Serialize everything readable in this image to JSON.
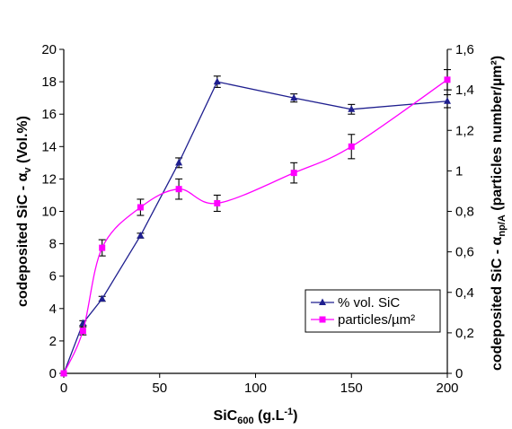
{
  "chart_data": {
    "type": "line",
    "title": "",
    "xlabel": {
      "base": "SiC",
      "sub": "600",
      "rest": " (g.L",
      "sup": "-1",
      "end": ")"
    },
    "ylabel_left": {
      "base": "codeposited SiC - α",
      "sub": "v",
      "rest": " (Vol.%)"
    },
    "ylabel_right": {
      "base": "codeposited SiC - α",
      "sub": "np/A",
      "rest": " (particles number/µm²)"
    },
    "xlim": [
      0,
      200
    ],
    "ylim_left": [
      0,
      20
    ],
    "ylim_right": [
      0,
      1.6
    ],
    "x_ticks": [
      "0",
      "50",
      "100",
      "150",
      "200"
    ],
    "y_left_ticks": [
      "0",
      "2",
      "4",
      "6",
      "8",
      "10",
      "12",
      "14",
      "16",
      "18",
      "20"
    ],
    "y_right_ticks": [
      "0",
      "0,2",
      "0,4",
      "0,6",
      "0,8",
      "1",
      "1,2",
      "1,4",
      "1,6"
    ],
    "grid": false,
    "legend_position": "bottom-right",
    "series": [
      {
        "name": "% vol. SiC",
        "axis": "left",
        "color": "#1f1f8f",
        "marker": "triangle",
        "smooth": false,
        "x": [
          0,
          10,
          20,
          40,
          60,
          80,
          120,
          150,
          200
        ],
        "y": [
          0,
          3.1,
          4.6,
          8.5,
          13.0,
          18.0,
          17.0,
          16.3,
          16.8
        ],
        "err": [
          0,
          0.15,
          0.15,
          0.15,
          0.3,
          0.35,
          0.25,
          0.3,
          0.4
        ]
      },
      {
        "name": "particles/µm²",
        "axis": "right",
        "color": "#ff00ff",
        "marker": "square",
        "smooth": true,
        "x": [
          0,
          10,
          20,
          40,
          60,
          80,
          120,
          150,
          200
        ],
        "y": [
          0,
          0.21,
          0.62,
          0.82,
          0.91,
          0.84,
          0.99,
          1.12,
          1.45
        ],
        "err": [
          0,
          0.02,
          0.04,
          0.04,
          0.05,
          0.04,
          0.05,
          0.06,
          0.05
        ]
      }
    ]
  }
}
